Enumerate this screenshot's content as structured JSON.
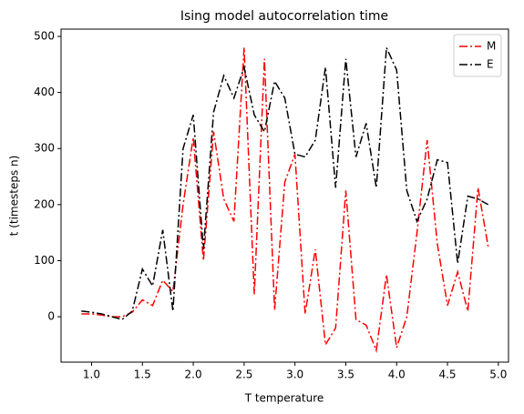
{
  "chart_data": {
    "type": "line",
    "title": "Ising model autocorrelation time",
    "x_label": "T temperature",
    "y_label": "t (timesteps n)",
    "x": [
      0.9,
      1.0,
      1.1,
      1.2,
      1.3,
      1.4,
      1.5,
      1.6,
      1.7,
      1.8,
      1.9,
      2.0,
      2.1,
      2.2,
      2.3,
      2.4,
      2.5,
      2.6,
      2.7,
      2.8,
      2.9,
      3.0,
      3.1,
      3.2,
      3.3,
      3.4,
      3.5,
      3.6,
      3.7,
      3.8,
      3.9,
      4.0,
      4.1,
      4.2,
      4.3,
      4.4,
      4.5,
      4.6,
      4.7,
      4.8,
      4.9
    ],
    "series": [
      {
        "name": "M",
        "color": "#ff0000",
        "values": [
          5,
          5,
          3,
          0,
          0,
          8,
          30,
          20,
          65,
          45,
          200,
          320,
          100,
          330,
          210,
          170,
          480,
          40,
          460,
          12,
          240,
          290,
          5,
          120,
          -50,
          -20,
          225,
          -5,
          -15,
          -60,
          75,
          -55,
          0,
          150,
          315,
          130,
          20,
          80,
          10,
          230,
          125
        ]
      },
      {
        "name": "E",
        "color": "#000000",
        "values": [
          10,
          8,
          5,
          0,
          -5,
          10,
          85,
          55,
          155,
          10,
          300,
          360,
          120,
          365,
          430,
          390,
          445,
          360,
          330,
          420,
          390,
          290,
          285,
          315,
          445,
          230,
          460,
          285,
          345,
          230,
          480,
          440,
          225,
          170,
          210,
          280,
          275,
          95,
          215,
          210,
          200
        ]
      }
    ],
    "xlim": [
      0.7,
      5.1
    ],
    "xticks": [
      {
        "value": 1.0,
        "label": "1.0"
      },
      {
        "value": 1.5,
        "label": "1.5"
      },
      {
        "value": 2.0,
        "label": "2.0"
      },
      {
        "value": 2.5,
        "label": "2.5"
      },
      {
        "value": 3.0,
        "label": "3.0"
      },
      {
        "value": 3.5,
        "label": "3.5"
      },
      {
        "value": 4.0,
        "label": "4.0"
      },
      {
        "value": 4.5,
        "label": "4.5"
      },
      {
        "value": 5.0,
        "label": "5.0"
      }
    ],
    "ylim": [
      -81,
      513
    ],
    "yticks": [
      0,
      100,
      200,
      300,
      400,
      500
    ],
    "legend": "upper right"
  }
}
